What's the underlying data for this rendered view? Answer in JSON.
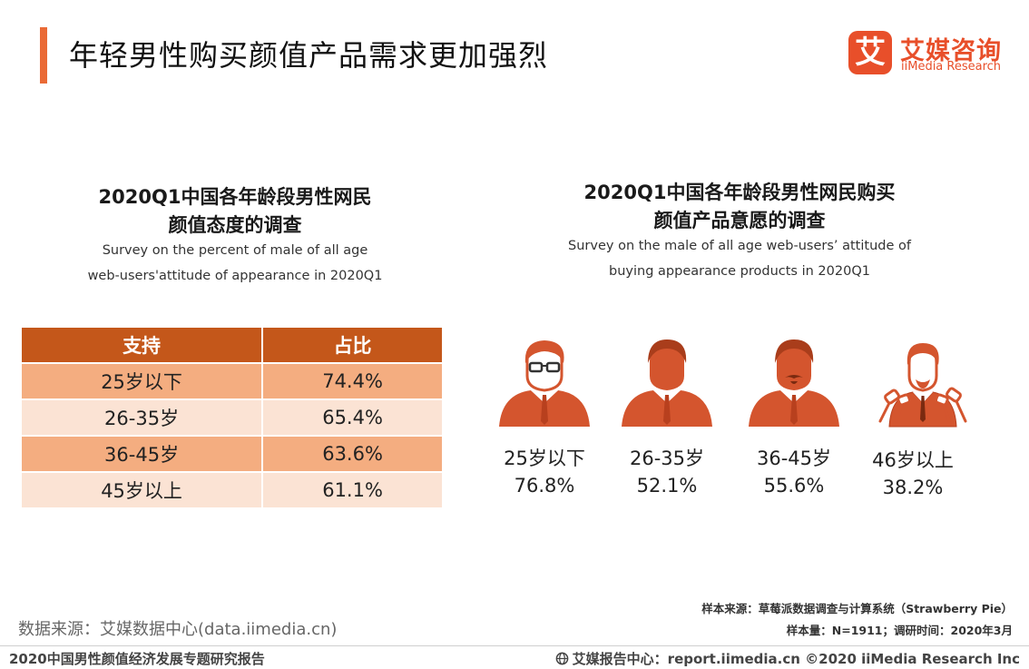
{
  "header": {
    "title": "年轻男性购买颜值产品需求更加强烈",
    "logo_mark": "艾",
    "logo_cn": "艾媒咨询",
    "logo_en": "iiMedia Research"
  },
  "left_section": {
    "title_line1": "2020Q1中国各年龄段男性网民",
    "title_line2": "颜值态度的调查",
    "subtitle_line1": "Survey on the percent of male of all age",
    "subtitle_line2": "web-users'attitude of appearance in 2020Q1",
    "table": {
      "headers": [
        "支持",
        "占比"
      ],
      "rows": [
        {
          "group": "25岁以下",
          "value": "74.4%"
        },
        {
          "group": "26-35岁",
          "value": "65.4%"
        },
        {
          "group": "36-45岁",
          "value": "63.6%"
        },
        {
          "group": "45岁以上",
          "value": "61.1%"
        }
      ]
    }
  },
  "right_section": {
    "title_line1": "2020Q1中国各年龄段男性网民购买",
    "title_line2": "颜值产品意愿的调查",
    "subtitle_line1": "Survey on the male of all age web-users’   attitude of",
    "subtitle_line2": "buying appearance products  in 2020Q1",
    "groups": [
      {
        "label": "25岁以下",
        "value": "76.8%",
        "icon": "young-man-glasses-icon"
      },
      {
        "label": "26-35岁",
        "value": "52.1%",
        "icon": "man-icon"
      },
      {
        "label": "36-45岁",
        "value": "55.6%",
        "icon": "man-mustache-icon"
      },
      {
        "label": "46岁以上",
        "value": "38.2%",
        "icon": "man-press-microphones-icon"
      }
    ]
  },
  "notes": {
    "sample_source": "样本来源：草莓派数据调查与计算系统（Strawberry  Pie）",
    "sample_size": "样本量：N=1911；调研时间：2020年3月"
  },
  "footer": {
    "data_source": "数据来源：艾媒数据中心(data.iimedia.cn)",
    "report_title": "2020中国男性颜值经济发展专题研究报告",
    "report_center": "艾媒报告中心：report.iimedia.cn  ©2020  iiMedia Research  Inc"
  },
  "colors": {
    "accent": "#ea6a36",
    "header_row": "#c4571a",
    "row_dark": "#f4ad80",
    "row_light": "#fbe3d4",
    "person": "#d4552e"
  }
}
